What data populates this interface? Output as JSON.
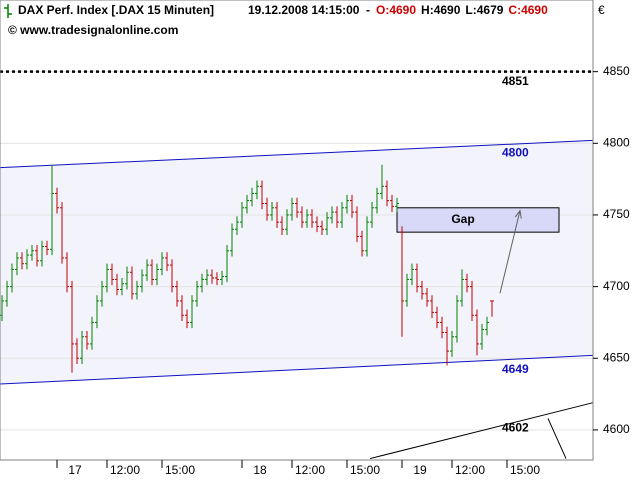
{
  "chart_data": {
    "type": "ohlc",
    "title": "DAX Perf. Index [.DAX  15 Minuten]",
    "timestamp": "19.12.2008 14:15:00",
    "separator": "-",
    "quote": [
      "O:4690",
      "H:4690",
      "L:4679",
      "C:4690"
    ],
    "quote_colors": [
      "#d00000",
      "#000000",
      "#000000",
      "#d00000"
    ],
    "copyright": "© www.tradesignalonline.com",
    "currency": "€",
    "up_color": "#008000",
    "down_color": "#c00000",
    "open": [
      4680,
      4690,
      4700,
      4712,
      4720,
      4716,
      4722,
      4725,
      4718,
      4728,
      4726,
      4765,
      4755,
      4720,
      4700,
      4660,
      4650,
      4665,
      4660,
      4675,
      4690,
      4700,
      4712,
      4705,
      4698,
      4702,
      4710,
      4695,
      4700,
      4708,
      4715,
      4705,
      4712,
      4720,
      4715,
      4700,
      4690,
      4680,
      4675,
      4690,
      4700,
      4705,
      4708,
      4706,
      4705,
      4707,
      4725,
      4740,
      4745,
      4755,
      4760,
      4765,
      4770,
      4758,
      4750,
      4755,
      4745,
      4740,
      4750,
      4758,
      4752,
      4745,
      4750,
      4745,
      4742,
      4740,
      4748,
      4752,
      4745,
      4755,
      4760,
      4752,
      4735,
      4725,
      4745,
      4755,
      4765,
      4770,
      4760,
      4756,
      4738,
      4690,
      4705,
      4712,
      4700,
      4695,
      4690,
      4682,
      4675,
      4668,
      4655,
      4665,
      4690,
      4705,
      4700,
      4680,
      4660,
      4670,
      4690
    ],
    "high": [
      4694,
      4704,
      4716,
      4724,
      4724,
      4726,
      4729,
      4729,
      4732,
      4732,
      4785,
      4769,
      4759,
      4724,
      4704,
      4664,
      4669,
      4669,
      4679,
      4694,
      4704,
      4716,
      4716,
      4709,
      4706,
      4714,
      4714,
      4704,
      4712,
      4719,
      4719,
      4716,
      4724,
      4724,
      4719,
      4704,
      4694,
      4684,
      4694,
      4704,
      4709,
      4712,
      4712,
      4710,
      4711,
      4729,
      4744,
      4749,
      4759,
      4764,
      4769,
      4774,
      4774,
      4762,
      4759,
      4759,
      4749,
      4754,
      4762,
      4762,
      4756,
      4754,
      4754,
      4749,
      4746,
      4752,
      4756,
      4756,
      4759,
      4764,
      4764,
      4756,
      4739,
      4749,
      4759,
      4769,
      4785,
      4774,
      4764,
      4762,
      4742,
      4709,
      4716,
      4716,
      4704,
      4699,
      4694,
      4686,
      4679,
      4672,
      4669,
      4694,
      4712,
      4709,
      4704,
      4684,
      4674,
      4679,
      4690
    ],
    "low": [
      4676,
      4686,
      4696,
      4708,
      4712,
      4712,
      4718,
      4714,
      4714,
      4722,
      4722,
      4751,
      4716,
      4696,
      4640,
      4646,
      4646,
      4656,
      4656,
      4671,
      4686,
      4696,
      4701,
      4694,
      4694,
      4698,
      4691,
      4691,
      4696,
      4704,
      4701,
      4701,
      4708,
      4711,
      4696,
      4686,
      4676,
      4671,
      4671,
      4686,
      4696,
      4701,
      4702,
      4701,
      4701,
      4703,
      4721,
      4736,
      4741,
      4751,
      4756,
      4761,
      4754,
      4746,
      4746,
      4741,
      4736,
      4736,
      4746,
      4748,
      4741,
      4741,
      4741,
      4738,
      4736,
      4736,
      4744,
      4741,
      4741,
      4751,
      4748,
      4731,
      4721,
      4721,
      4741,
      4751,
      4761,
      4756,
      4752,
      4752,
      4665,
      4686,
      4701,
      4696,
      4691,
      4686,
      4678,
      4671,
      4664,
      4645,
      4651,
      4661,
      4686,
      4696,
      4676,
      4652,
      4656,
      4666,
      4679
    ],
    "close": [
      4690,
      4700,
      4712,
      4720,
      4716,
      4722,
      4725,
      4718,
      4728,
      4726,
      4765,
      4755,
      4720,
      4700,
      4660,
      4650,
      4665,
      4660,
      4675,
      4690,
      4700,
      4712,
      4705,
      4698,
      4702,
      4710,
      4695,
      4700,
      4708,
      4715,
      4705,
      4712,
      4720,
      4715,
      4700,
      4690,
      4680,
      4675,
      4690,
      4700,
      4705,
      4708,
      4706,
      4705,
      4707,
      4725,
      4740,
      4745,
      4755,
      4760,
      4765,
      4770,
      4758,
      4750,
      4755,
      4745,
      4740,
      4750,
      4758,
      4752,
      4745,
      4750,
      4745,
      4742,
      4740,
      4748,
      4752,
      4745,
      4755,
      4760,
      4752,
      4735,
      4725,
      4745,
      4755,
      4765,
      4770,
      4760,
      4756,
      4758,
      4690,
      4705,
      4712,
      4700,
      4695,
      4690,
      4682,
      4675,
      4668,
      4655,
      4665,
      4690,
      4705,
      4700,
      4680,
      4660,
      4670,
      4675,
      4690
    ],
    "xlim": [
      -0.4,
      118.2
    ],
    "xticks": [
      {
        "value": 11,
        "label": "17"
      },
      {
        "value": 21,
        "label": "12:00"
      },
      {
        "value": 32,
        "label": "15:00"
      },
      {
        "value": 48,
        "label": "18"
      },
      {
        "value": 58,
        "label": "12:00"
      },
      {
        "value": 69,
        "label": "15:00"
      },
      {
        "value": 80,
        "label": "19"
      },
      {
        "value": 90,
        "label": "12:00"
      },
      {
        "value": 101,
        "label": "15:00"
      }
    ],
    "ylim": [
      4579,
      4900
    ],
    "yticks": [
      4600,
      4650,
      4700,
      4750,
      4800,
      4850
    ],
    "grid": true,
    "channel_fill": "#f3f3fb",
    "lines": [
      {
        "x": [
          -0.4,
          118.2
        ],
        "y": [
          4783,
          4802
        ],
        "color": "#1010c0",
        "dash": false,
        "label": 4800,
        "label_x": 100,
        "label_y": 4793
      },
      {
        "x": [
          -0.4,
          118.2
        ],
        "y": [
          4632,
          4652
        ],
        "color": "#1010c0",
        "dash": false,
        "label": 4649,
        "label_x": 100,
        "label_y": 4642
      },
      {
        "x": [
          -0.4,
          118.2
        ],
        "y": [
          4850,
          4850
        ],
        "color": "#000000",
        "dash": true,
        "label": 4851,
        "label_x": 100,
        "label_y": 4843
      },
      {
        "x": [
          73.6,
          118.2
        ],
        "y": [
          4580,
          4619
        ],
        "color": "#000000",
        "dash": false,
        "label": 4602,
        "label_x": 100,
        "label_y": 4601
      },
      {
        "x": [
          109.2,
          112.8
        ],
        "y": [
          4608,
          4580
        ],
        "color": "#000000",
        "dash": false
      }
    ],
    "gap_box": {
      "x": [
        79,
        111.4
      ],
      "y": [
        4738,
        4755
      ],
      "label": "Gap",
      "fill": "#d8d8f8"
    },
    "arrow": {
      "x": [
        99.6,
        103.6
      ],
      "y": [
        4695.4,
        4753
      ]
    }
  }
}
